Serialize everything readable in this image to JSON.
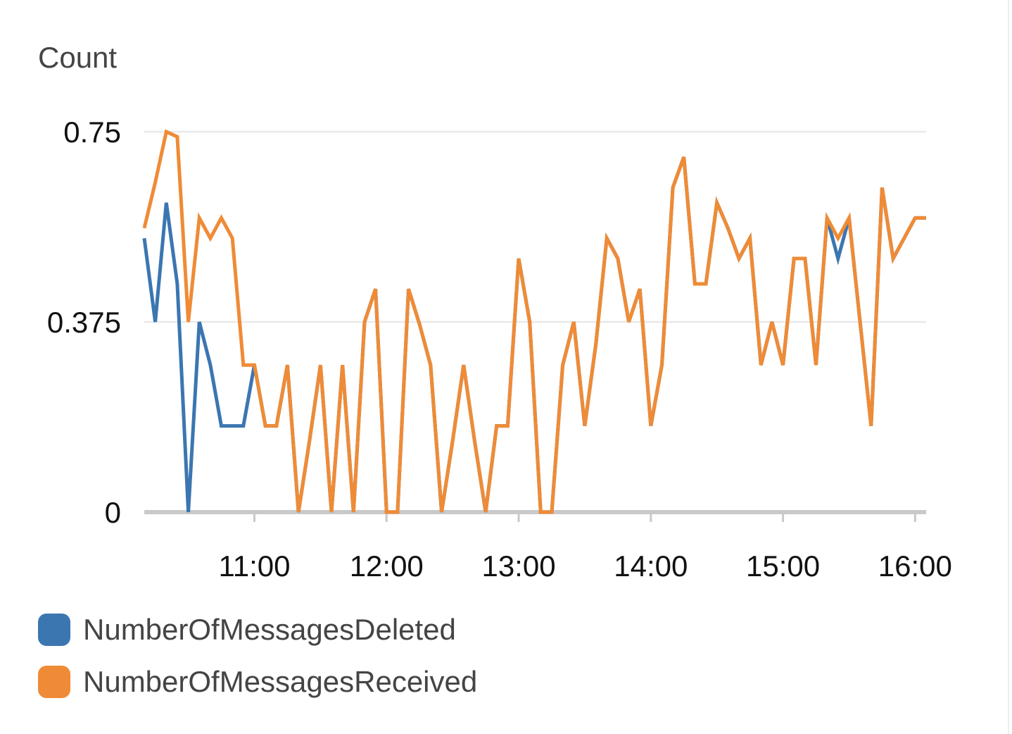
{
  "chart_data": {
    "type": "line",
    "ylabel": "Count",
    "ylim": [
      0,
      0.75
    ],
    "yticks": [
      "0",
      "0.375",
      "0.75"
    ],
    "xlim": [
      "10:10",
      "16:05"
    ],
    "xticks": [
      "11:00",
      "12:00",
      "13:00",
      "14:00",
      "15:00",
      "16:00"
    ],
    "grid": true,
    "legend_position": "bottom-left",
    "series": [
      {
        "name": "NumberOfMessagesDeleted",
        "color": "#3b76b1",
        "points": [
          [
            "10:10",
            0.54
          ],
          [
            "10:15",
            0.375
          ],
          [
            "10:20",
            0.61
          ],
          [
            "10:25",
            0.45
          ],
          [
            "10:30",
            0.0
          ],
          [
            "10:35",
            0.375
          ],
          [
            "10:40",
            0.29
          ],
          [
            "10:45",
            0.17
          ],
          [
            "10:50",
            0.17
          ],
          [
            "10:55",
            0.17
          ],
          [
            "11:00",
            0.29
          ],
          [
            "11:05",
            0.17
          ],
          [
            "11:10",
            0.17
          ],
          [
            "11:15",
            0.29
          ],
          [
            "11:20",
            0.0
          ],
          [
            "11:25",
            0.14
          ],
          [
            "11:30",
            0.29
          ],
          [
            "11:35",
            0.0
          ],
          [
            "11:40",
            0.29
          ],
          [
            "11:45",
            0.0
          ],
          [
            "11:50",
            0.375
          ],
          [
            "11:55",
            0.44
          ],
          [
            "12:00",
            0.0
          ],
          [
            "12:05",
            0.0
          ],
          [
            "12:10",
            0.44
          ],
          [
            "12:15",
            0.37
          ],
          [
            "12:20",
            0.29
          ],
          [
            "12:25",
            0.0
          ],
          [
            "12:30",
            0.14
          ],
          [
            "12:35",
            0.29
          ],
          [
            "12:40",
            0.14
          ],
          [
            "12:45",
            0.0
          ],
          [
            "12:50",
            0.17
          ],
          [
            "12:55",
            0.17
          ],
          [
            "13:00",
            0.5
          ],
          [
            "13:05",
            0.375
          ],
          [
            "13:10",
            0.0
          ],
          [
            "13:15",
            0.0
          ],
          [
            "13:20",
            0.29
          ],
          [
            "13:25",
            0.375
          ],
          [
            "13:30",
            0.17
          ],
          [
            "13:35",
            0.33
          ],
          [
            "13:40",
            0.54
          ],
          [
            "13:45",
            0.5
          ],
          [
            "13:50",
            0.375
          ],
          [
            "13:55",
            0.44
          ],
          [
            "14:00",
            0.17
          ],
          [
            "14:05",
            0.29
          ],
          [
            "14:10",
            0.64
          ],
          [
            "14:15",
            0.7
          ],
          [
            "14:20",
            0.45
          ],
          [
            "14:25",
            0.45
          ],
          [
            "14:30",
            0.61
          ],
          [
            "14:35",
            0.56
          ],
          [
            "14:40",
            0.5
          ],
          [
            "14:45",
            0.54
          ],
          [
            "14:50",
            0.29
          ],
          [
            "14:55",
            0.375
          ],
          [
            "15:00",
            0.29
          ],
          [
            "15:05",
            0.5
          ],
          [
            "15:10",
            0.5
          ],
          [
            "15:15",
            0.29
          ],
          [
            "15:20",
            0.58
          ],
          [
            "15:25",
            0.5
          ],
          [
            "15:30",
            0.58
          ],
          [
            "15:35",
            0.375
          ],
          [
            "15:40",
            0.17
          ],
          [
            "15:45",
            0.64
          ],
          [
            "15:50",
            0.5
          ],
          [
            "15:55",
            0.54
          ],
          [
            "16:00",
            0.58
          ],
          [
            "16:05",
            0.58
          ]
        ]
      },
      {
        "name": "NumberOfMessagesReceived",
        "color": "#ef8b36",
        "points": [
          [
            "10:10",
            0.56
          ],
          [
            "10:15",
            0.65
          ],
          [
            "10:20",
            0.75
          ],
          [
            "10:25",
            0.74
          ],
          [
            "10:30",
            0.375
          ],
          [
            "10:35",
            0.58
          ],
          [
            "10:40",
            0.54
          ],
          [
            "10:45",
            0.58
          ],
          [
            "10:50",
            0.54
          ],
          [
            "10:55",
            0.29
          ],
          [
            "11:00",
            0.29
          ],
          [
            "11:05",
            0.17
          ],
          [
            "11:10",
            0.17
          ],
          [
            "11:15",
            0.29
          ],
          [
            "11:20",
            0.0
          ],
          [
            "11:25",
            0.14
          ],
          [
            "11:30",
            0.29
          ],
          [
            "11:35",
            0.0
          ],
          [
            "11:40",
            0.29
          ],
          [
            "11:45",
            0.0
          ],
          [
            "11:50",
            0.375
          ],
          [
            "11:55",
            0.44
          ],
          [
            "12:00",
            0.0
          ],
          [
            "12:05",
            0.0
          ],
          [
            "12:10",
            0.44
          ],
          [
            "12:15",
            0.37
          ],
          [
            "12:20",
            0.29
          ],
          [
            "12:25",
            0.0
          ],
          [
            "12:30",
            0.14
          ],
          [
            "12:35",
            0.29
          ],
          [
            "12:40",
            0.14
          ],
          [
            "12:45",
            0.0
          ],
          [
            "12:50",
            0.17
          ],
          [
            "12:55",
            0.17
          ],
          [
            "13:00",
            0.5
          ],
          [
            "13:05",
            0.375
          ],
          [
            "13:10",
            0.0
          ],
          [
            "13:15",
            0.0
          ],
          [
            "13:20",
            0.29
          ],
          [
            "13:25",
            0.375
          ],
          [
            "13:30",
            0.17
          ],
          [
            "13:35",
            0.33
          ],
          [
            "13:40",
            0.54
          ],
          [
            "13:45",
            0.5
          ],
          [
            "13:50",
            0.375
          ],
          [
            "13:55",
            0.44
          ],
          [
            "14:00",
            0.17
          ],
          [
            "14:05",
            0.29
          ],
          [
            "14:10",
            0.64
          ],
          [
            "14:15",
            0.7
          ],
          [
            "14:20",
            0.45
          ],
          [
            "14:25",
            0.45
          ],
          [
            "14:30",
            0.61
          ],
          [
            "14:35",
            0.56
          ],
          [
            "14:40",
            0.5
          ],
          [
            "14:45",
            0.54
          ],
          [
            "14:50",
            0.29
          ],
          [
            "14:55",
            0.375
          ],
          [
            "15:00",
            0.29
          ],
          [
            "15:05",
            0.5
          ],
          [
            "15:10",
            0.5
          ],
          [
            "15:15",
            0.29
          ],
          [
            "15:20",
            0.58
          ],
          [
            "15:25",
            0.54
          ],
          [
            "15:30",
            0.58
          ],
          [
            "15:35",
            0.375
          ],
          [
            "15:40",
            0.17
          ],
          [
            "15:45",
            0.64
          ],
          [
            "15:50",
            0.5
          ],
          [
            "15:55",
            0.54
          ],
          [
            "16:00",
            0.58
          ],
          [
            "16:05",
            0.58
          ]
        ]
      }
    ]
  }
}
